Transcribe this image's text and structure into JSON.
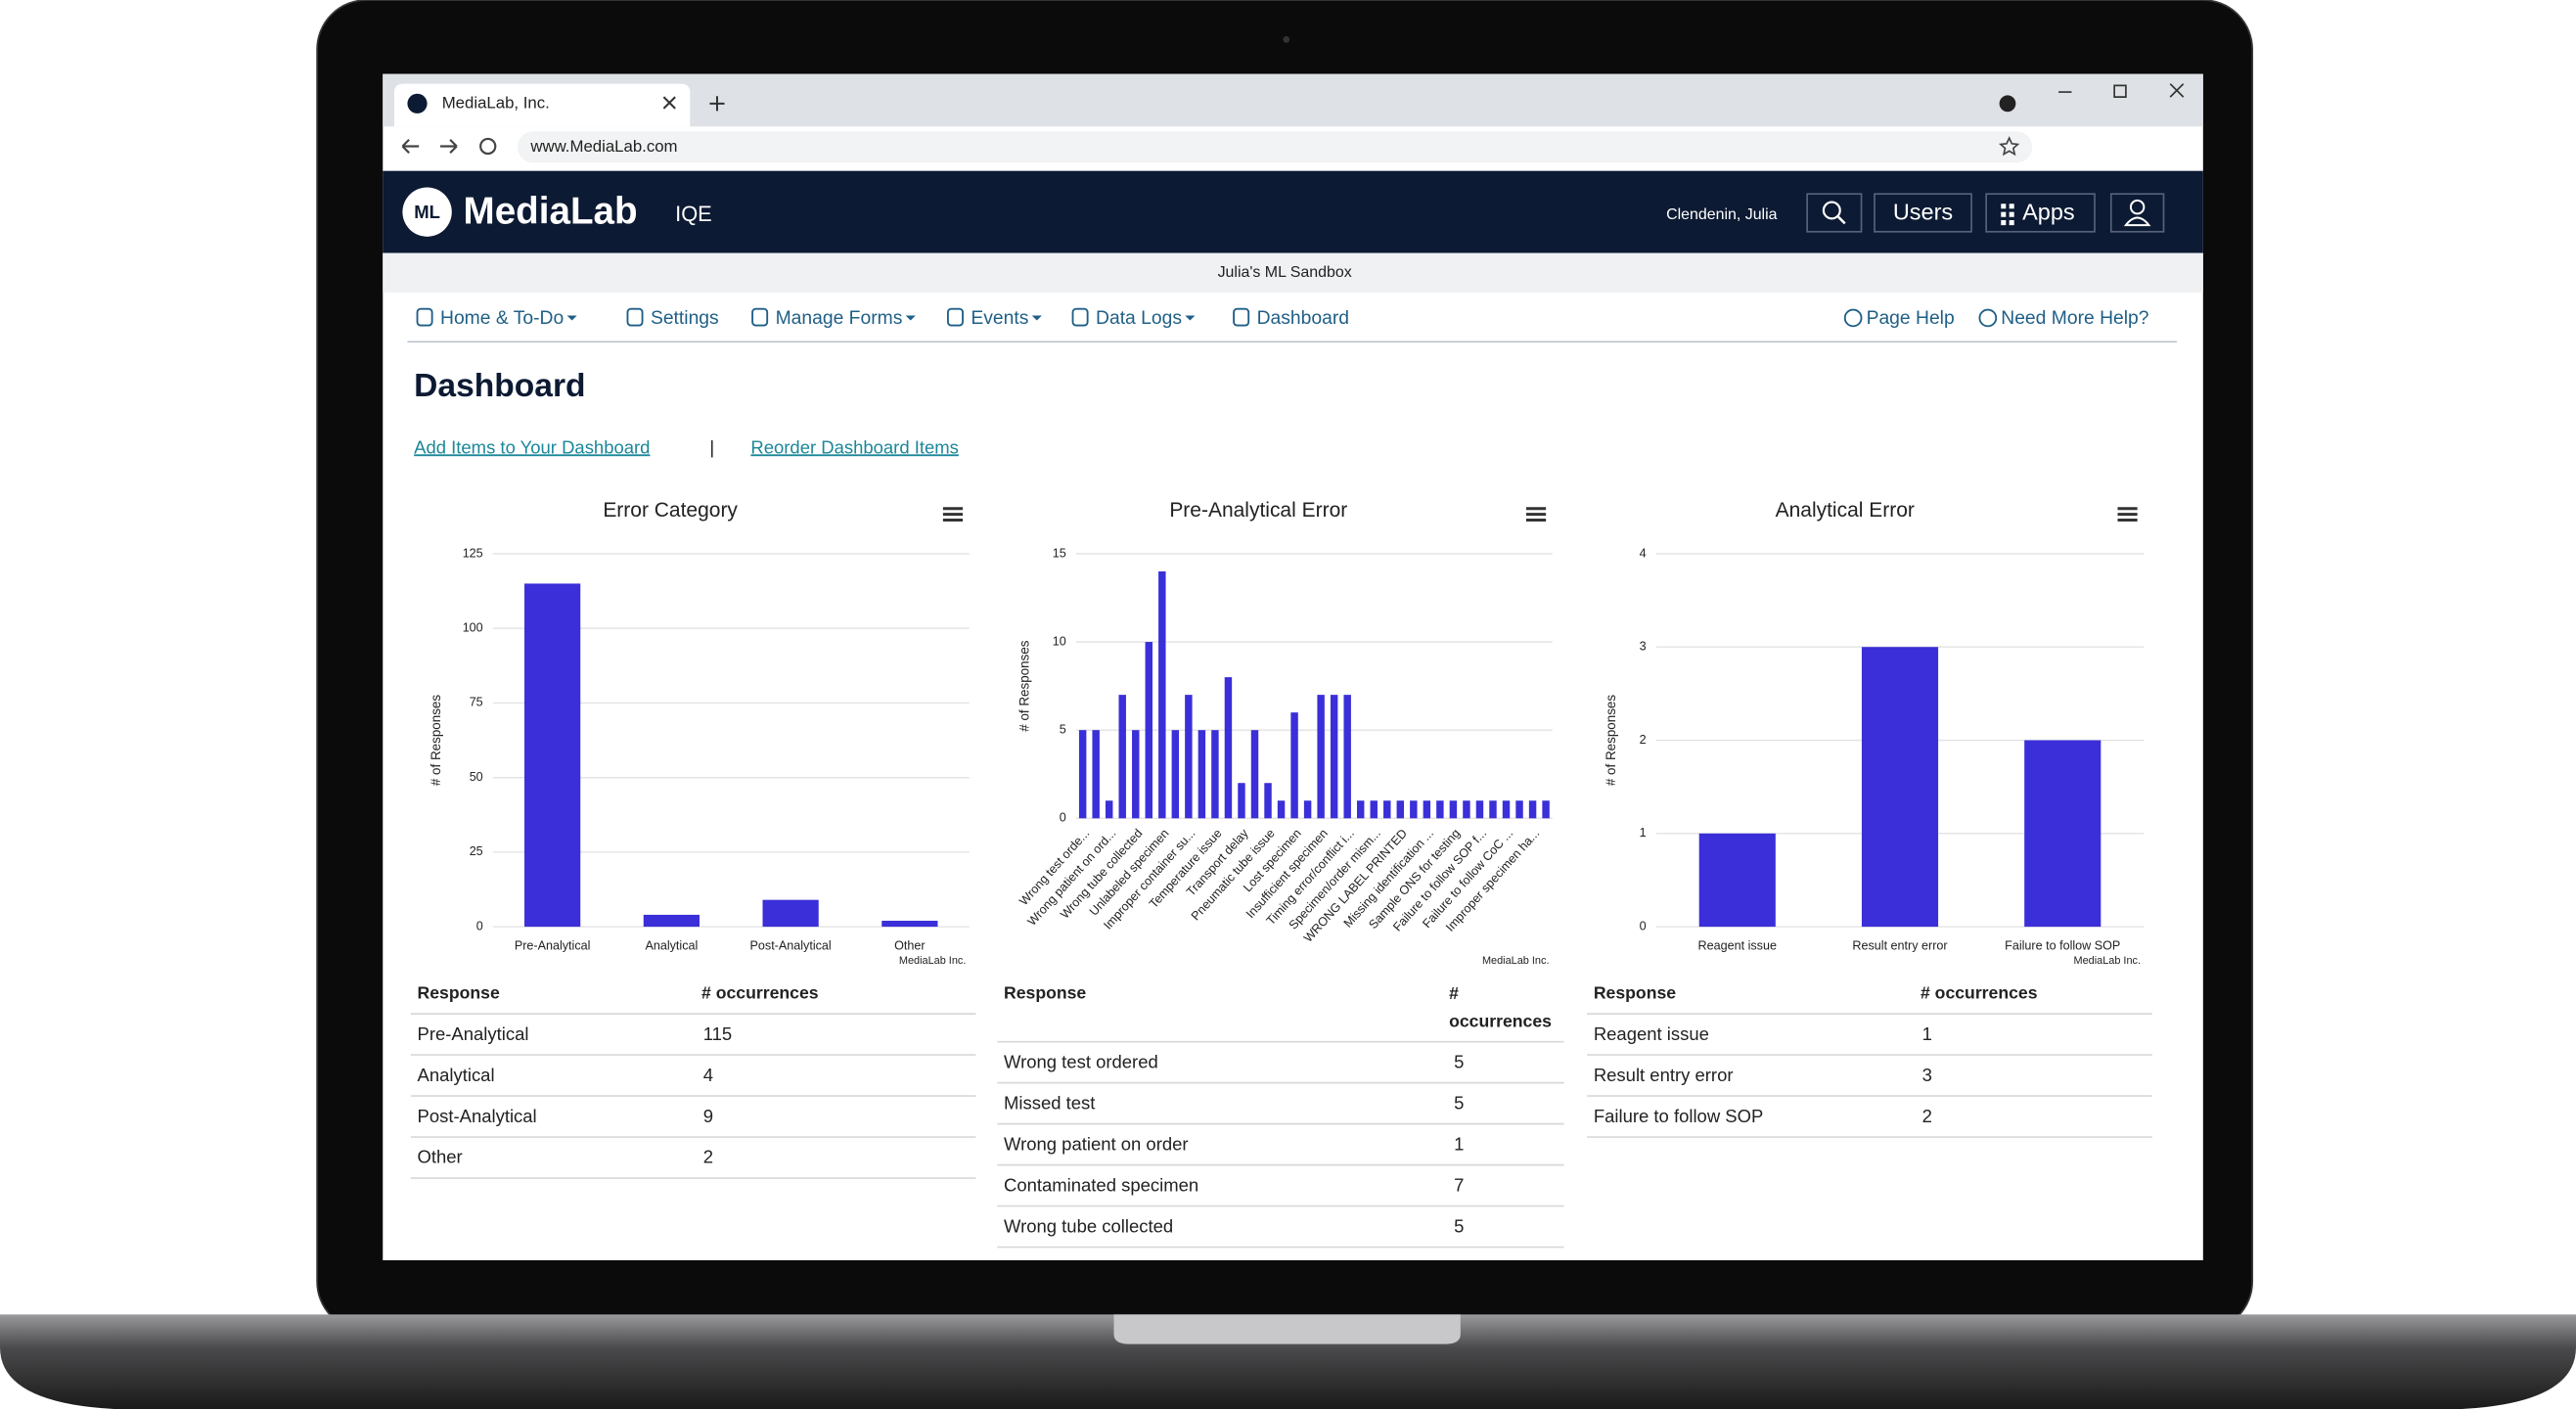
{
  "browser": {
    "tab_title": "MediaLab, Inc.",
    "url": "www.MediaLab.com"
  },
  "header": {
    "brand": "MediaLab",
    "product": "IQE",
    "user": "Clendenin, Julia",
    "buttons": [
      "Users",
      "Apps"
    ]
  },
  "sandbox": "Julia's ML Sandbox",
  "nav": {
    "items": [
      "Home & To-Do",
      "Settings",
      "Manage Forms",
      "Events",
      "Data Logs",
      "Dashboard"
    ],
    "help": [
      "Page Help",
      "Need More Help?"
    ]
  },
  "page": {
    "title": "Dashboard",
    "links": [
      "Add Items to Your Dashboard",
      "Reorder Dashboard Items"
    ],
    "separator": "|"
  },
  "chart_data": [
    {
      "type": "bar",
      "title": "Error Category",
      "ylabel": "# of Responses",
      "credit": "MediaLab Inc.",
      "categories": [
        "Pre-Analytical",
        "Analytical",
        "Post-Analytical",
        "Other"
      ],
      "values": [
        115,
        4,
        9,
        2
      ],
      "color": "#3a2fd8",
      "ylim": [
        0,
        125
      ],
      "yticks": [
        0,
        25,
        50,
        75,
        100,
        125
      ],
      "grid": true,
      "table": {
        "header": [
          "Response",
          "# occurrences"
        ],
        "rows": [
          [
            "Pre-Analytical",
            115
          ],
          [
            "Analytical",
            4
          ],
          [
            "Post-Analytical",
            9
          ],
          [
            "Other",
            2
          ]
        ]
      }
    },
    {
      "type": "bar",
      "title": "Pre-Analytical Error",
      "ylabel": "# of Responses",
      "credit": "MediaLab Inc.",
      "categories": [
        "Wrong test orde...",
        null,
        "Wrong patient on ord...",
        null,
        "Wrong tube collected",
        null,
        "Unlabeled specimen",
        null,
        "Improper container su...",
        null,
        "Temperature issue",
        null,
        "Transport delay",
        null,
        "Pneumatic tube issue",
        null,
        "Lost specimen",
        null,
        "Insufficient specimen",
        null,
        "Timing error/conflict i...",
        null,
        "Specimen/order mism...",
        null,
        "WRONG LABEL PRINTED",
        null,
        "Missing identification ...",
        null,
        "Sample ONS for testing",
        null,
        "Failure to follow SOP f...",
        null,
        "Failure to follow CoC ...",
        null,
        "Improper specimen ha...",
        null
      ],
      "values": [
        5,
        5,
        1,
        7,
        5,
        10,
        14,
        5,
        7,
        5,
        5,
        8,
        2,
        5,
        2,
        1,
        6,
        1,
        7,
        7,
        7,
        1,
        1,
        1,
        1,
        1,
        1,
        1,
        1,
        1,
        1,
        1,
        1,
        1,
        1,
        1
      ],
      "color": "#3a2fd8",
      "ylim": [
        0,
        15
      ],
      "yticks": [
        0,
        5,
        10,
        15
      ],
      "grid": true,
      "table": {
        "header": [
          "Response",
          "# occurrences"
        ],
        "rows": [
          [
            "Wrong test ordered",
            5
          ],
          [
            "Missed test",
            5
          ],
          [
            "Wrong patient on order",
            1
          ],
          [
            "Contaminated specimen",
            7
          ],
          [
            "Wrong tube collected",
            5
          ]
        ]
      }
    },
    {
      "type": "bar",
      "title": "Analytical Error",
      "ylabel": "# of Responses",
      "credit": "MediaLab Inc.",
      "categories": [
        "Reagent issue",
        "Result entry error",
        "Failure to follow SOP"
      ],
      "values": [
        1,
        3,
        2
      ],
      "color": "#3a2fd8",
      "ylim": [
        0,
        4
      ],
      "yticks": [
        0,
        1,
        2,
        3,
        4
      ],
      "grid": true,
      "table": {
        "header": [
          "Response",
          "# occurrences"
        ],
        "rows": [
          [
            "Reagent issue",
            1
          ],
          [
            "Result entry error",
            3
          ],
          [
            "Failure to follow SOP",
            2
          ]
        ]
      }
    }
  ]
}
